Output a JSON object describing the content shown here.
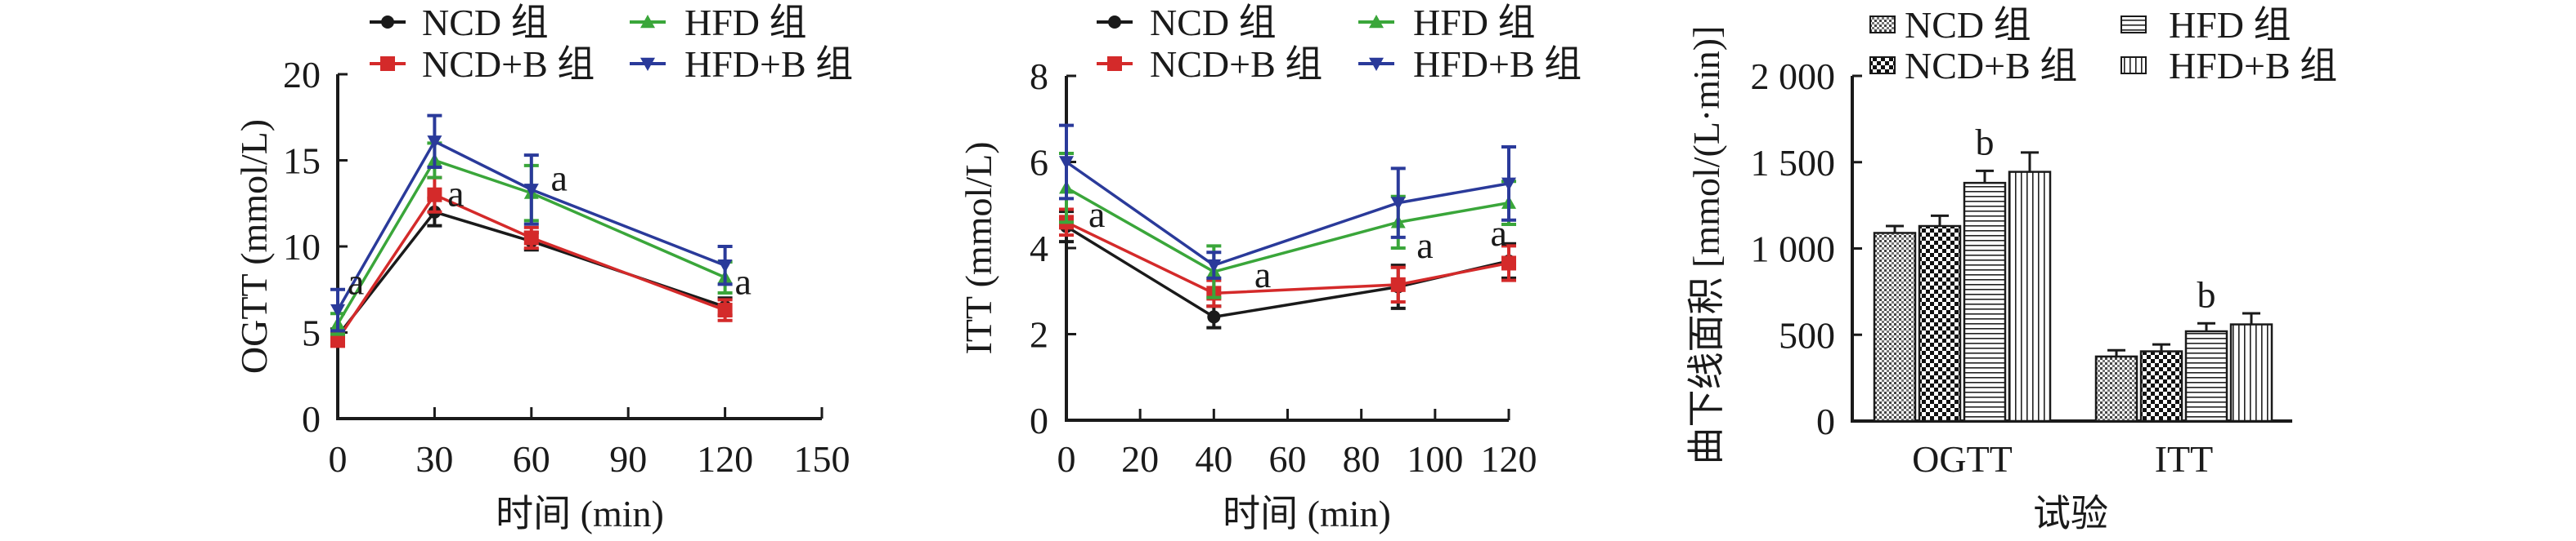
{
  "chart_data": [
    {
      "type": "line",
      "xlabel": "时间 (min)",
      "ylabel": "OGTT (mmol/L)",
      "xlim": [
        0,
        150
      ],
      "ylim": [
        0,
        20
      ],
      "xticks": [
        0,
        30,
        60,
        90,
        120,
        150
      ],
      "yticks": [
        0,
        5,
        10,
        15,
        20
      ],
      "legend_position": "top",
      "grid": false,
      "x": [
        0,
        30,
        60,
        120
      ],
      "series": [
        {
          "name": "NCD 组",
          "color": "#1a1a1a",
          "marker": "circle",
          "values": [
            4.8,
            12.0,
            10.3,
            6.5
          ],
          "error": [
            0.4,
            0.8,
            0.5,
            0.5
          ]
        },
        {
          "name": "NCD+B 组",
          "color": "#d42a2a",
          "marker": "square",
          "values": [
            4.6,
            13.0,
            10.5,
            6.3
          ],
          "error": [
            0.4,
            1.0,
            0.6,
            0.6
          ]
        },
        {
          "name": "HFD 组",
          "color": "#3aa63a",
          "marker": "triangle-up",
          "values": [
            5.5,
            15.0,
            13.1,
            8.2
          ],
          "error": [
            0.6,
            1.0,
            1.6,
            0.9
          ]
        },
        {
          "name": "HFD+B 组",
          "color": "#2a3a9a",
          "marker": "triangle-down",
          "values": [
            6.3,
            16.1,
            13.3,
            8.9
          ],
          "error": [
            1.2,
            1.5,
            2.0,
            1.1
          ]
        }
      ],
      "annotations": [
        {
          "text": "a",
          "x": 3,
          "y": 7.9
        },
        {
          "text": "a",
          "x": 34,
          "y": 13.0
        },
        {
          "text": "a",
          "x": 66,
          "y": 13.9
        },
        {
          "text": "a",
          "x": 123,
          "y": 7.9
        }
      ]
    },
    {
      "type": "line",
      "xlabel": "时间 (min)",
      "ylabel": "ITT (mmol/L)",
      "xlim": [
        0,
        120
      ],
      "ylim": [
        0,
        8
      ],
      "xticks": [
        0,
        20,
        40,
        60,
        80,
        100,
        120
      ],
      "yticks": [
        0,
        2,
        4,
        6,
        8
      ],
      "legend_position": "top",
      "grid": false,
      "x": [
        0,
        40,
        90,
        120
      ],
      "series": [
        {
          "name": "NCD 组",
          "color": "#1a1a1a",
          "marker": "circle",
          "values": [
            4.5,
            2.4,
            3.1,
            3.7
          ],
          "error": [
            0.35,
            0.25,
            0.5,
            0.4
          ]
        },
        {
          "name": "NCD+B 组",
          "color": "#d42a2a",
          "marker": "square",
          "values": [
            4.6,
            2.95,
            3.15,
            3.65
          ],
          "error": [
            0.3,
            0.3,
            0.4,
            0.4
          ]
        },
        {
          "name": "HFD 组",
          "color": "#3aa63a",
          "marker": "triangle-up",
          "values": [
            5.4,
            3.45,
            4.6,
            5.05
          ],
          "error": [
            0.8,
            0.6,
            0.6,
            0.5
          ]
        },
        {
          "name": "HFD+B 组",
          "color": "#2a3a9a",
          "marker": "triangle-down",
          "values": [
            6.0,
            3.6,
            5.05,
            5.5
          ],
          "error": [
            0.85,
            0.3,
            0.8,
            0.85
          ]
        }
      ],
      "annotations": [
        {
          "text": "a",
          "x": 6,
          "y": 4.76
        },
        {
          "text": "a",
          "x": 51,
          "y": 3.36
        },
        {
          "text": "a",
          "x": 95,
          "y": 4.04
        },
        {
          "text": "a",
          "x": 115,
          "y": 4.32
        }
      ]
    },
    {
      "type": "bar",
      "xlabel": "试验",
      "ylabel": "曲下线面积 [mmol/(L·min)]",
      "ylim": [
        0,
        2000
      ],
      "yticks": [
        0,
        500,
        1000,
        1500,
        2000
      ],
      "ytick_labels": [
        "0",
        "500",
        "1 000",
        "1 500",
        "2 000"
      ],
      "legend_position": "top",
      "grid": false,
      "categories": [
        "OGTT",
        "ITT"
      ],
      "series": [
        {
          "name": "NCD 组",
          "pattern": "fine-dots",
          "values": [
            1090,
            374
          ],
          "error": [
            40,
            36
          ]
        },
        {
          "name": "NCD+B 组",
          "pattern": "checker",
          "values": [
            1130,
            404
          ],
          "error": [
            60,
            40
          ]
        },
        {
          "name": "HFD 组",
          "pattern": "horizontal-lines",
          "values": [
            1380,
            520
          ],
          "error": [
            70,
            46
          ]
        },
        {
          "name": "HFD+B 组",
          "pattern": "vertical-lines",
          "values": [
            1444,
            560
          ],
          "error": [
            112,
            64
          ]
        }
      ],
      "annotations": [
        {
          "text": "b",
          "category": "OGTT",
          "series": "HFD 组"
        },
        {
          "text": "b",
          "category": "ITT",
          "series": "HFD 组"
        }
      ]
    }
  ]
}
